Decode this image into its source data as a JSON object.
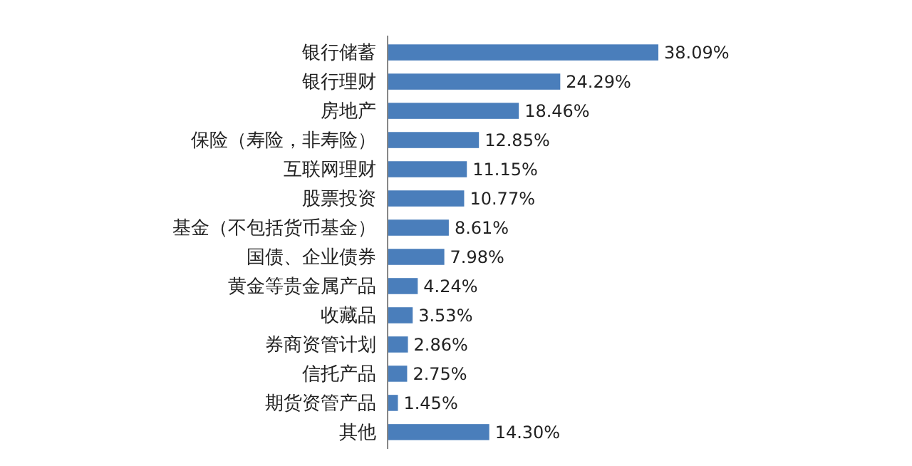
{
  "chart_data": {
    "type": "bar",
    "orientation": "horizontal",
    "categories": [
      "银行储蓄",
      "银行理财",
      "房地产",
      "保险（寿险，非寿险）",
      "互联网理财",
      "股票投资",
      "基金（不包括货币基金）",
      "国债、企业债券",
      "黄金等贵金属产品",
      "收藏品",
      "券商资管计划",
      "信托产品",
      "期货资管产品",
      "其他"
    ],
    "values": [
      38.09,
      24.29,
      18.46,
      12.85,
      11.15,
      10.77,
      8.61,
      7.98,
      4.24,
      3.53,
      2.86,
      2.75,
      1.45,
      14.3
    ],
    "value_labels": [
      "38.09%",
      "24.29%",
      "18.46%",
      "12.85%",
      "11.15%",
      "10.77%",
      "8.61%",
      "7.98%",
      "4.24%",
      "3.53%",
      "2.86%",
      "2.75%",
      "1.45%",
      "14.30%"
    ],
    "color": "#4a7ebb"
  }
}
